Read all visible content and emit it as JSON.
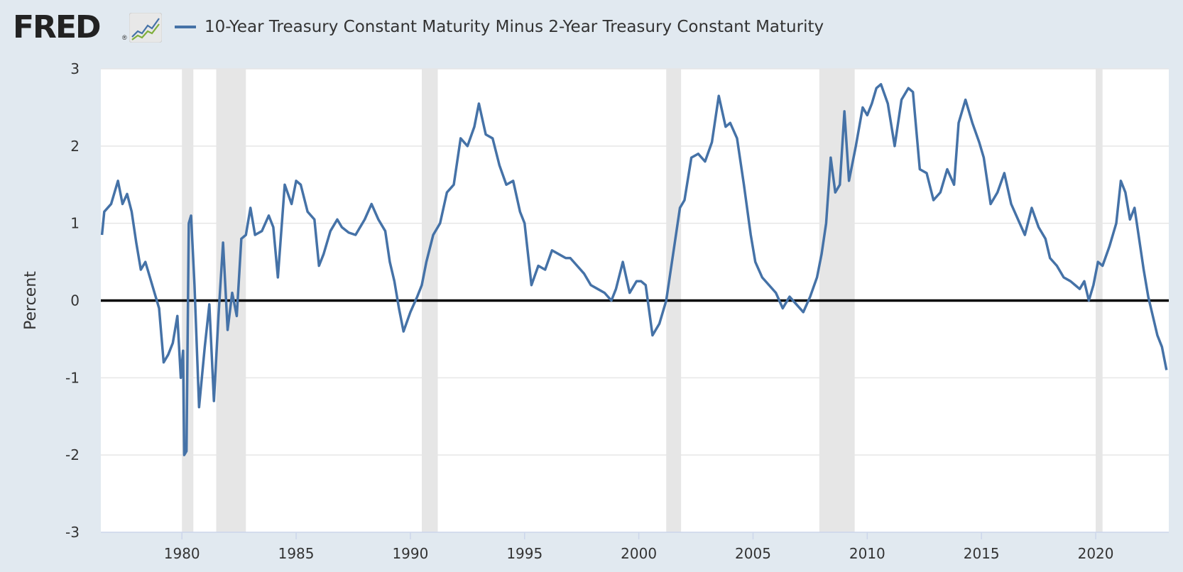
{
  "header": {
    "logo_text": "FRED",
    "logo_reg": "®",
    "legend_label": "10-Year Treasury Constant Maturity Minus 2-Year Treasury Constant Maturity"
  },
  "colors": {
    "background": "#e1e9f0",
    "plot_background": "#ffffff",
    "series": "#4572a7",
    "recession": "#e6e6e6",
    "zero_line": "#000000",
    "grid": "#e6e6e6"
  },
  "chart_data": {
    "type": "line",
    "title": "",
    "xlabel": "",
    "ylabel": "Percent",
    "xlim": [
      1976.45,
      2023.2
    ],
    "ylim": [
      -3,
      3
    ],
    "grid": "horizontal",
    "zero_line": true,
    "legend_position": "top-left",
    "x_ticks": [
      1980,
      1985,
      1990,
      1995,
      2000,
      2005,
      2010,
      2015,
      2020
    ],
    "y_ticks": [
      -3,
      -2,
      -1,
      0,
      1,
      2,
      3
    ],
    "x_tick_labels": [
      "1980",
      "1985",
      "1990",
      "1995",
      "2000",
      "2005",
      "2010",
      "2015",
      "2020"
    ],
    "y_tick_labels": [
      "-3",
      "-2",
      "-1",
      "0",
      "1",
      "2",
      "3"
    ],
    "recessions": [
      [
        1980.0,
        1980.5
      ],
      [
        1981.5,
        1982.8
      ],
      [
        1990.5,
        1991.2
      ],
      [
        2001.2,
        2001.85
      ],
      [
        2007.9,
        2009.45
      ],
      [
        2020.0,
        2020.3
      ]
    ],
    "series": [
      {
        "name": "10-Year Treasury Constant Maturity Minus 2-Year Treasury Constant Maturity",
        "x": [
          1976.5,
          1976.6,
          1976.9,
          1977.2,
          1977.4,
          1977.6,
          1977.8,
          1978.0,
          1978.2,
          1978.4,
          1978.6,
          1978.8,
          1979.0,
          1979.2,
          1979.4,
          1979.6,
          1979.8,
          1979.95,
          1980.05,
          1980.1,
          1980.2,
          1980.3,
          1980.4,
          1980.55,
          1980.75,
          1981.0,
          1981.2,
          1981.4,
          1981.6,
          1981.8,
          1982.0,
          1982.2,
          1982.4,
          1982.6,
          1982.8,
          1983.0,
          1983.2,
          1983.5,
          1983.8,
          1984.0,
          1984.2,
          1984.5,
          1984.8,
          1985.0,
          1985.2,
          1985.5,
          1985.8,
          1986.0,
          1986.2,
          1986.5,
          1986.8,
          1987.0,
          1987.3,
          1987.6,
          1988.0,
          1988.3,
          1988.6,
          1988.9,
          1989.1,
          1989.3,
          1989.5,
          1989.7,
          1990.0,
          1990.3,
          1990.5,
          1990.7,
          1991.0,
          1991.3,
          1991.6,
          1991.9,
          1992.2,
          1992.5,
          1992.8,
          1993.0,
          1993.3,
          1993.6,
          1993.9,
          1994.2,
          1994.5,
          1994.8,
          1995.0,
          1995.3,
          1995.6,
          1995.9,
          1996.2,
          1996.5,
          1996.8,
          1997.0,
          1997.3,
          1997.6,
          1997.9,
          1998.2,
          1998.5,
          1998.8,
          1999.0,
          1999.3,
          1999.6,
          1999.9,
          2000.1,
          2000.3,
          2000.6,
          2000.9,
          2001.2,
          2001.5,
          2001.8,
          2002.0,
          2002.3,
          2002.6,
          2002.9,
          2003.2,
          2003.5,
          2003.8,
          2004.0,
          2004.3,
          2004.6,
          2004.9,
          2005.1,
          2005.4,
          2005.7,
          2006.0,
          2006.3,
          2006.6,
          2006.9,
          2007.2,
          2007.5,
          2007.8,
          2008.0,
          2008.2,
          2008.4,
          2008.6,
          2008.8,
          2009.0,
          2009.2,
          2009.5,
          2009.8,
          2010.0,
          2010.2,
          2010.4,
          2010.6,
          2010.9,
          2011.2,
          2011.5,
          2011.8,
          2012.0,
          2012.3,
          2012.6,
          2012.9,
          2013.2,
          2013.5,
          2013.8,
          2014.0,
          2014.3,
          2014.6,
          2014.9,
          2015.1,
          2015.4,
          2015.7,
          2016.0,
          2016.3,
          2016.6,
          2016.9,
          2017.2,
          2017.5,
          2017.8,
          2018.0,
          2018.3,
          2018.6,
          2018.9,
          2019.1,
          2019.3,
          2019.5,
          2019.7,
          2019.9,
          2020.1,
          2020.3,
          2020.6,
          2020.9,
          2021.1,
          2021.3,
          2021.5,
          2021.7,
          2021.9,
          2022.1,
          2022.3,
          2022.5,
          2022.7,
          2022.9,
          2023.1
        ],
        "y": [
          0.85,
          1.15,
          1.25,
          1.55,
          1.25,
          1.38,
          1.15,
          0.75,
          0.4,
          0.5,
          0.3,
          0.1,
          -0.1,
          -0.8,
          -0.7,
          -0.55,
          -0.2,
          -1.0,
          -0.65,
          -2.0,
          -1.95,
          1.0,
          1.1,
          0.2,
          -1.38,
          -0.6,
          -0.05,
          -1.3,
          -0.2,
          0.75,
          -0.38,
          0.1,
          -0.2,
          0.8,
          0.85,
          1.2,
          0.85,
          0.9,
          1.1,
          0.95,
          0.3,
          1.5,
          1.25,
          1.55,
          1.5,
          1.15,
          1.05,
          0.45,
          0.6,
          0.9,
          1.05,
          0.95,
          0.88,
          0.85,
          1.05,
          1.25,
          1.05,
          0.9,
          0.5,
          0.25,
          -0.1,
          -0.4,
          -0.15,
          0.05,
          0.2,
          0.5,
          0.85,
          1.0,
          1.4,
          1.5,
          2.1,
          2.0,
          2.25,
          2.55,
          2.15,
          2.1,
          1.75,
          1.5,
          1.55,
          1.15,
          1.0,
          0.2,
          0.45,
          0.4,
          0.65,
          0.6,
          0.55,
          0.55,
          0.45,
          0.35,
          0.2,
          0.15,
          0.1,
          0.0,
          0.15,
          0.5,
          0.1,
          0.25,
          0.25,
          0.2,
          -0.45,
          -0.3,
          0.0,
          0.6,
          1.2,
          1.3,
          1.85,
          1.9,
          1.8,
          2.05,
          2.65,
          2.25,
          2.3,
          2.1,
          1.5,
          0.85,
          0.5,
          0.3,
          0.2,
          0.1,
          -0.1,
          0.05,
          -0.05,
          -0.15,
          0.05,
          0.3,
          0.6,
          1.0,
          1.85,
          1.4,
          1.5,
          2.45,
          1.55,
          2.0,
          2.5,
          2.4,
          2.55,
          2.75,
          2.8,
          2.55,
          2.0,
          2.6,
          2.75,
          2.7,
          1.7,
          1.65,
          1.3,
          1.4,
          1.7,
          1.5,
          2.3,
          2.6,
          2.3,
          2.05,
          1.85,
          1.25,
          1.4,
          1.65,
          1.25,
          1.05,
          0.85,
          1.2,
          0.95,
          0.8,
          0.55,
          0.45,
          0.3,
          0.25,
          0.2,
          0.15,
          0.25,
          0.0,
          0.2,
          0.5,
          0.45,
          0.7,
          1.0,
          1.55,
          1.4,
          1.05,
          1.2,
          0.8,
          0.4,
          0.05,
          -0.2,
          -0.45,
          -0.6,
          -0.9
        ]
      }
    ]
  }
}
